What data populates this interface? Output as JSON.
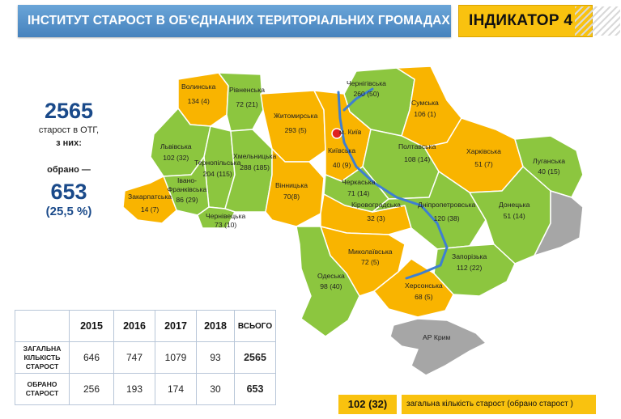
{
  "header": {
    "title": "ІНСТИТУТ СТАРОСТ В ОБ'ЄДНАНИХ  ТЕРИТОРІАЛЬНИХ ГРОМАДАХ",
    "indicator": "ІНДИКАТОР 4"
  },
  "summary": {
    "total": "2565",
    "total_caption_1": "старост в ОТГ,",
    "total_caption_2": "з них:",
    "elected_caption": "обрано —",
    "elected": "653",
    "elected_percent": "(25,5 %)"
  },
  "colors": {
    "green": "#8cc63f",
    "yellow": "#f9b400",
    "gray": "#a6a6a6",
    "river": "#3e7fd1",
    "capital": "#e02020"
  },
  "map": {
    "capital_label": "м. Київ",
    "regions": [
      {
        "name": "Волинська",
        "value": "134 (4)",
        "status": "yellow"
      },
      {
        "name": "Рівненська",
        "value": "72 (21)",
        "status": "green"
      },
      {
        "name": "Житомирська",
        "value": "293 (5)",
        "status": "yellow"
      },
      {
        "name": "Чернігівська",
        "value": "260 (50)",
        "status": "green"
      },
      {
        "name": "Сумська",
        "value": "106 (1)",
        "status": "yellow"
      },
      {
        "name": "Київська",
        "value": "40 (9)",
        "status": "yellow"
      },
      {
        "name": "Полтавська",
        "value": "108 (14)",
        "status": "green"
      },
      {
        "name": "Харківська",
        "value": "51 (7)",
        "status": "yellow"
      },
      {
        "name": "Луганська",
        "value": "40 (15)",
        "status": "green"
      },
      {
        "name": "Львівська",
        "value": "102 (32)",
        "status": "green"
      },
      {
        "name": "Тернопільська",
        "value": "204 (115)",
        "status": "green"
      },
      {
        "name": "Хмельницька",
        "value": "288 (185)",
        "status": "green"
      },
      {
        "name": "Івано-Франківська",
        "value": "86 (29)",
        "status": "green"
      },
      {
        "name": "Закарпатська",
        "value": "14 (7)",
        "status": "yellow"
      },
      {
        "name": "Чернівецька",
        "value": "73 (10)",
        "status": "green"
      },
      {
        "name": "Вінницька",
        "value": "70(8)",
        "status": "yellow"
      },
      {
        "name": "Черкаська",
        "value": "71 (14)",
        "status": "green"
      },
      {
        "name": "Кіровоградська",
        "value": "32 (3)",
        "status": "yellow"
      },
      {
        "name": "Дніпропетровська",
        "value": "120 (38)",
        "status": "green"
      },
      {
        "name": "Донецька",
        "value": "51 (14)",
        "status": "green"
      },
      {
        "name": "Миколаївська",
        "value": "72 (5)",
        "status": "yellow"
      },
      {
        "name": "Запорізька",
        "value": "112 (22)",
        "status": "green"
      },
      {
        "name": "Одеська",
        "value": "98 (40)",
        "status": "green"
      },
      {
        "name": "Херсонська",
        "value": "68 (5)",
        "status": "yellow"
      },
      {
        "name": "АР Крим",
        "value": "",
        "status": "gray"
      }
    ]
  },
  "table": {
    "columns": [
      "",
      "2015",
      "2016",
      "2017",
      "2018",
      "ВСЬОГО"
    ],
    "rows": [
      {
        "label_1": "ЗАГАЛЬНА",
        "label_2": "КІЛЬКІСТЬ",
        "label_3": "СТАРОСТ",
        "values": [
          "646",
          "747",
          "1079",
          "93"
        ],
        "total": "2565"
      },
      {
        "label_1": "ОБРАНО",
        "label_2": "СТАРОСТ",
        "label_3": "",
        "values": [
          "256",
          "193",
          "174",
          "30"
        ],
        "total": "653"
      }
    ]
  },
  "legend": {
    "sample": "102 (32)",
    "text": "загальна кількість  старост  (обрано старост )"
  }
}
